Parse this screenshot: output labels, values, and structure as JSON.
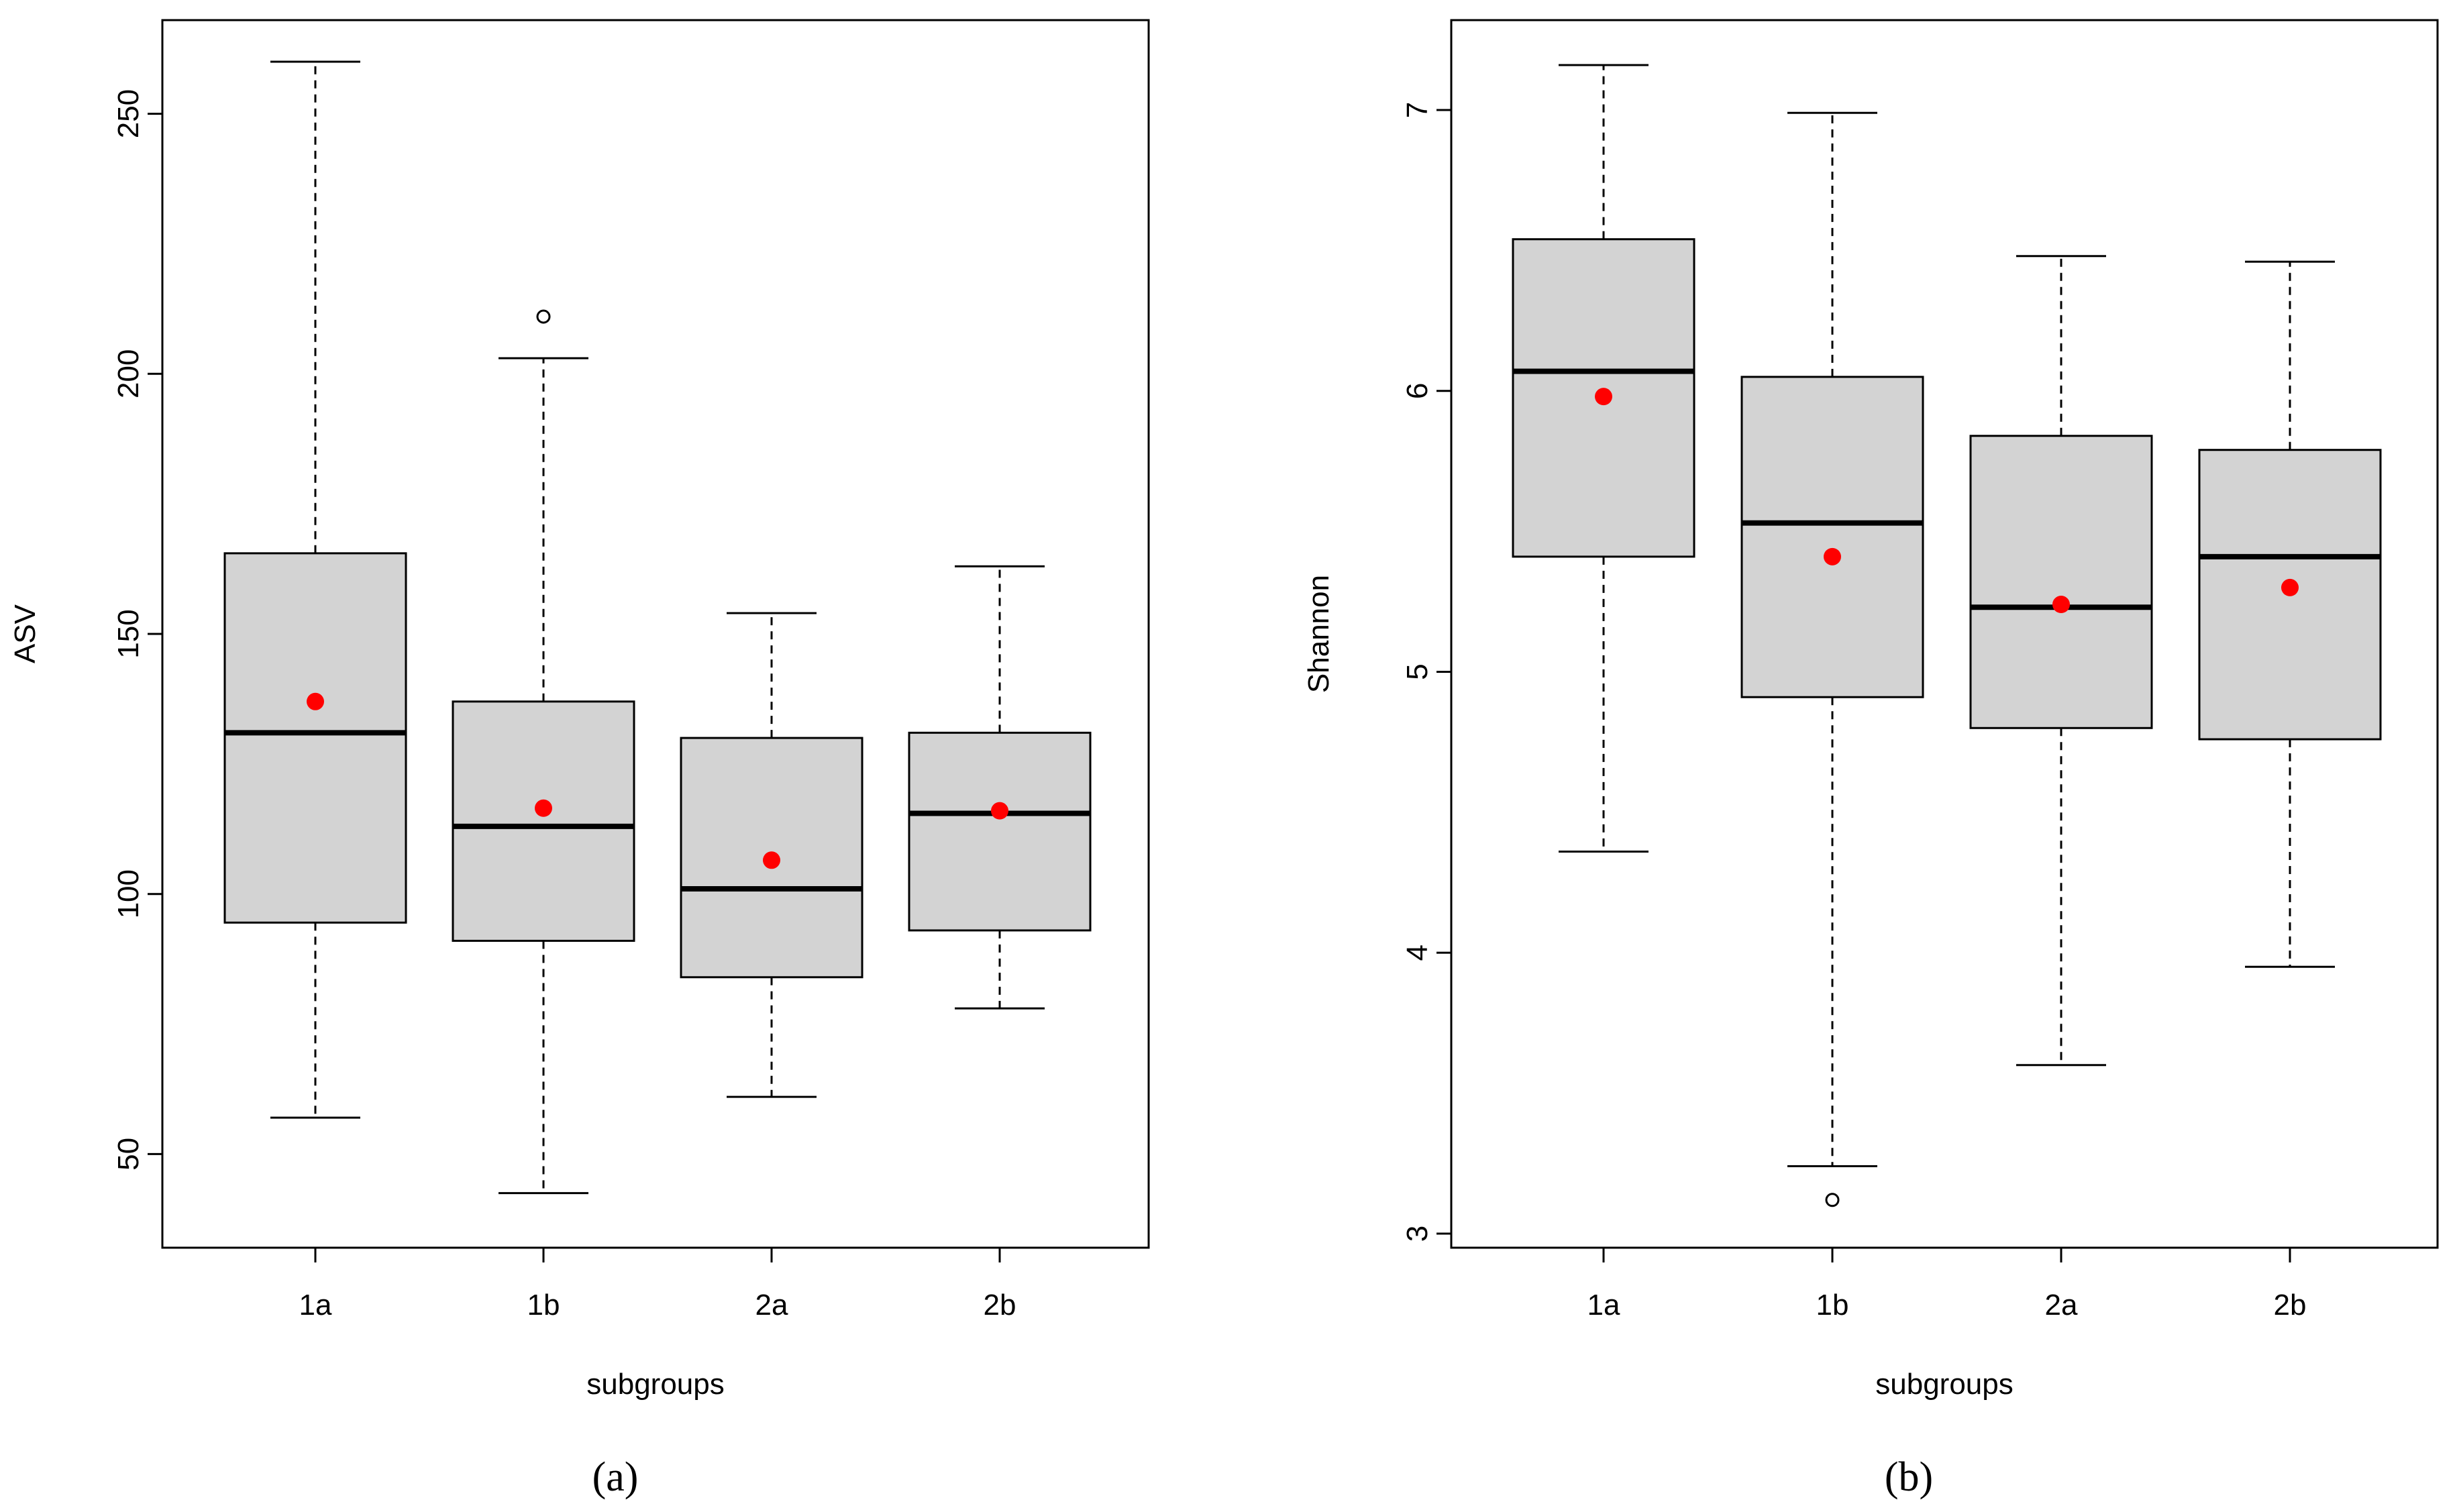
{
  "chart_data": [
    {
      "type": "box",
      "panel_label": "(a)",
      "title": "",
      "xlabel": "subgroups",
      "ylabel": "ASV",
      "ylim": [
        32,
        268
      ],
      "yticks": [
        {
          "value": 50,
          "label": "50"
        },
        {
          "value": 100,
          "label": "100"
        },
        {
          "value": 150,
          "label": "150"
        },
        {
          "value": 200,
          "label": "200"
        },
        {
          "value": 250,
          "label": "250"
        }
      ],
      "categories": [
        "1a",
        "1b",
        "2a",
        "2b"
      ],
      "boxes": [
        {
          "category": "1a",
          "whisker_low": 57,
          "q1": 94.5,
          "median": 131,
          "q3": 165.5,
          "whisker_high": 260,
          "mean": 137,
          "outliers": []
        },
        {
          "category": "1b",
          "whisker_low": 42.5,
          "q1": 91,
          "median": 113,
          "q3": 137,
          "whisker_high": 203,
          "mean": 116.5,
          "outliers": [
            211
          ]
        },
        {
          "category": "2a",
          "whisker_low": 61,
          "q1": 84,
          "median": 101,
          "q3": 130,
          "whisker_high": 154,
          "mean": 106.5,
          "outliers": []
        },
        {
          "category": "2b",
          "whisker_low": 78,
          "q1": 93,
          "median": 115.5,
          "q3": 131,
          "whisker_high": 163,
          "mean": 116,
          "outliers": []
        }
      ],
      "colors": {
        "box_fill": "#d3d3d3",
        "mean_marker": "#ff0000",
        "line": "#000000"
      }
    },
    {
      "type": "box",
      "panel_label": "(b)",
      "title": "",
      "xlabel": "subgroups",
      "ylabel": "Shannon",
      "ylim": [
        2.95,
        7.32
      ],
      "yticks": [
        {
          "value": 3,
          "label": "3"
        },
        {
          "value": 4,
          "label": "4"
        },
        {
          "value": 5,
          "label": "5"
        },
        {
          "value": 6,
          "label": "6"
        },
        {
          "value": 7,
          "label": "7"
        }
      ],
      "categories": [
        "1a",
        "1b",
        "2a",
        "2b"
      ],
      "boxes": [
        {
          "category": "1a",
          "whisker_low": 4.36,
          "q1": 5.41,
          "median": 6.07,
          "q3": 6.54,
          "whisker_high": 7.16,
          "mean": 5.98,
          "outliers": []
        },
        {
          "category": "1b",
          "whisker_low": 3.24,
          "q1": 4.91,
          "median": 5.53,
          "q3": 6.05,
          "whisker_high": 6.99,
          "mean": 5.41,
          "outliers": [
            3.12
          ]
        },
        {
          "category": "2a",
          "whisker_low": 3.6,
          "q1": 4.8,
          "median": 5.23,
          "q3": 5.84,
          "whisker_high": 6.48,
          "mean": 5.24,
          "outliers": []
        },
        {
          "category": "2b",
          "whisker_low": 3.95,
          "q1": 4.76,
          "median": 5.41,
          "q3": 5.79,
          "whisker_high": 6.46,
          "mean": 5.3,
          "outliers": []
        }
      ],
      "colors": {
        "box_fill": "#d3d3d3",
        "mean_marker": "#ff0000",
        "line": "#000000"
      }
    }
  ]
}
